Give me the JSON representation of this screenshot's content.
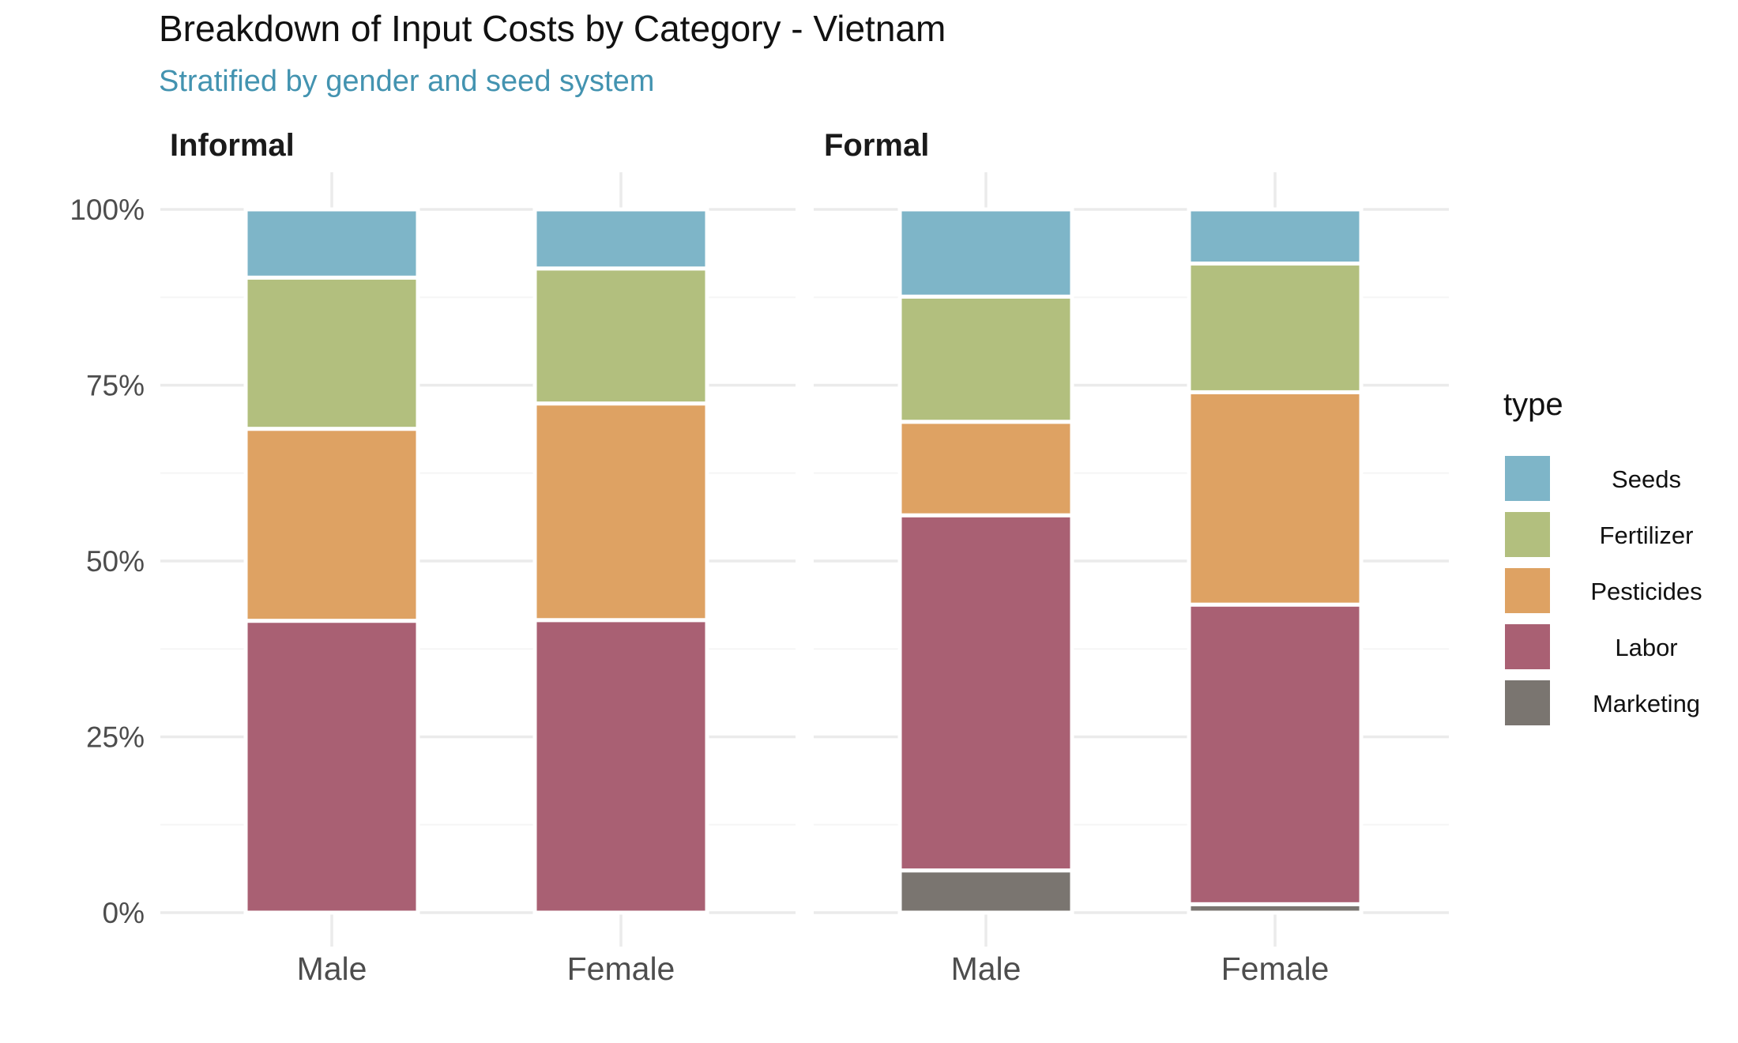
{
  "chart_data": {
    "type": "bar",
    "stacked": true,
    "title": "Breakdown of Input Costs by Category - Vietnam",
    "subtitle": "Stratified by gender and seed system",
    "categories": [
      "Male",
      "Female"
    ],
    "panels": [
      {
        "name": "Informal",
        "series": [
          {
            "name": "Marketing",
            "values": [
              0.0,
              0.0
            ]
          },
          {
            "name": "Labor",
            "values": [
              41.5,
              41.6
            ]
          },
          {
            "name": "Pesticides",
            "values": [
              27.3,
              30.8
            ]
          },
          {
            "name": "Fertilizer",
            "values": [
              21.5,
              19.2
            ]
          },
          {
            "name": "Seeds",
            "values": [
              9.7,
              8.4
            ]
          }
        ]
      },
      {
        "name": "Formal",
        "series": [
          {
            "name": "Marketing",
            "values": [
              6.0,
              1.2
            ]
          },
          {
            "name": "Labor",
            "values": [
              50.5,
              42.6
            ]
          },
          {
            "name": "Pesticides",
            "values": [
              13.3,
              30.2
            ]
          },
          {
            "name": "Fertilizer",
            "values": [
              17.8,
              18.3
            ]
          },
          {
            "name": "Seeds",
            "values": [
              12.4,
              7.7
            ]
          }
        ]
      }
    ],
    "ylim": [
      0,
      100
    ],
    "yticks": [
      "0%",
      "25%",
      "50%",
      "75%",
      "100%"
    ],
    "ytick_values": [
      0,
      25,
      50,
      75,
      100
    ],
    "grid": true,
    "legend": {
      "title": "type",
      "position": "right",
      "entries": [
        "Seeds",
        "Fertilizer",
        "Pesticides",
        "Labor",
        "Marketing"
      ]
    },
    "colors": {
      "Seeds": "#7eb5c8",
      "Fertilizer": "#b2bf7e",
      "Pesticides": "#dea263",
      "Labor": "#a96073",
      "Marketing": "#7a7570"
    },
    "subtitle_color": "#4393b0"
  }
}
